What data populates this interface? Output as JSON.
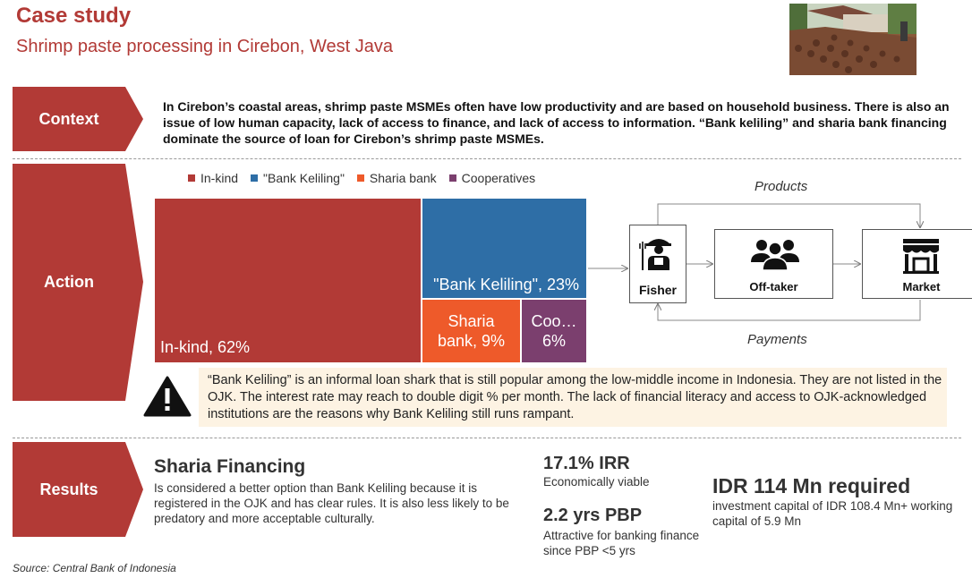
{
  "header": {
    "title": "Case study",
    "subtitle": "Shrimp paste processing in Cirebon, West Java"
  },
  "colors": {
    "accent": "#b23a36",
    "in_kind": "#b23a36",
    "bank_keliling": "#2e6ea6",
    "sharia_bank": "#ee5a2a",
    "cooperatives": "#7b3f6e",
    "warning_bg": "#fdf3e3"
  },
  "sections": {
    "context_label": "Context",
    "action_label": "Action",
    "results_label": "Results"
  },
  "context": {
    "text": "In Cirebon’s coastal areas, shrimp paste MSMEs often have low productivity and are based on household business. There is also an issue of low human capacity, lack of access to finance, and lack of access to information. “Bank keliling” and sharia bank financing dominate the source of loan for Cirebon’s shrimp paste MSMEs."
  },
  "chart_data": {
    "type": "treemap",
    "legend": [
      "In-kind",
      "\"Bank Keliling\"",
      "Sharia bank",
      "Cooperatives"
    ],
    "categories": [
      "In-kind",
      "\"Bank Keliling\"",
      "Sharia bank",
      "Cooperatives"
    ],
    "values": [
      62,
      23,
      9,
      6
    ],
    "unit": "%",
    "labels": [
      "In-kind, 62%",
      "\"Bank Keliling\", 23%",
      "Sharia bank, 9%",
      "Coo… 6%"
    ],
    "legend_placement": "top"
  },
  "flow": {
    "fisher": "Fisher",
    "offtaker": "Off-taker",
    "market": "Market",
    "products": "Products",
    "payments": "Payments",
    "icons": [
      "farmer-icon",
      "people-group-icon",
      "storefront-icon"
    ]
  },
  "warning": {
    "icon": "warning-triangle-icon",
    "text": "“Bank Keliling” is an informal loan shark that is still popular among the low-middle income in Indonesia. They are not listed in the OJK. The interest rate may reach to double digit % per month. The lack of financial literacy and access to OJK-acknowledged institutions are the reasons why Bank Keliling still runs rampant."
  },
  "results": {
    "title": "Sharia Financing",
    "text": "Is considered a better option than Bank Keliling because it is registered in the OJK and has clear rules. It is also less likely to be predatory and more acceptable culturally.",
    "irr_value": "17.1% IRR",
    "irr_note": "Economically viable",
    "pbp_value": "2.2 yrs PBP",
    "pbp_note": "Attractive for banking finance since PBP <5 yrs",
    "idr_value": "IDR 114 Mn required",
    "idr_note": "investment capital of IDR 108.4 Mn+ working capital of 5.9 Mn"
  },
  "footer": {
    "source": "Source:  Central Bank of Indonesia"
  }
}
